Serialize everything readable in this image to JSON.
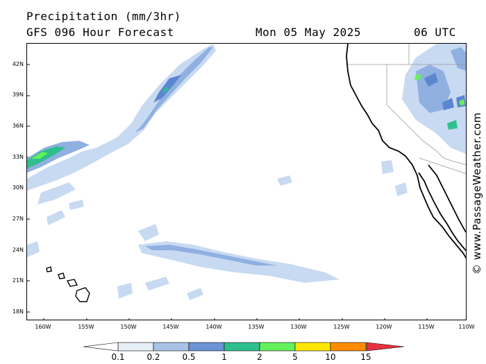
{
  "header": {
    "title": "Precipitation (mm/3hr)",
    "subtitle": "GFS 096 Hour Forecast",
    "date": "Mon 05 May 2025",
    "time": "06 UTC"
  },
  "axes": {
    "lat_labels": [
      "42N",
      "39N",
      "36N",
      "33N",
      "30N",
      "27N",
      "24N",
      "21N",
      "18N"
    ],
    "lon_labels": [
      "160W",
      "155W",
      "150W",
      "145W",
      "140W",
      "135W",
      "130W",
      "125W",
      "120W",
      "115W",
      "110W"
    ]
  },
  "credit": "© www.PassageWeather.com",
  "legend": {
    "levels": [
      "0.1",
      "0.2",
      "0.5",
      "1",
      "2",
      "5",
      "10",
      "15"
    ],
    "colors": [
      "#ffffff",
      "#e6eef8",
      "#a9c3e4",
      "#6b93d6",
      "#2fbf8f",
      "#66f05a",
      "#ffe600",
      "#ff8c00",
      "#e8313f"
    ]
  },
  "colors": {
    "light_rain": "#c8daf2",
    "moderate_rain": "#8fb0e0",
    "heavier_rain": "#5c86cf",
    "teal": "#2fbf8f",
    "green": "#66f05a",
    "coastline": "#000000",
    "borders": "#999999"
  }
}
